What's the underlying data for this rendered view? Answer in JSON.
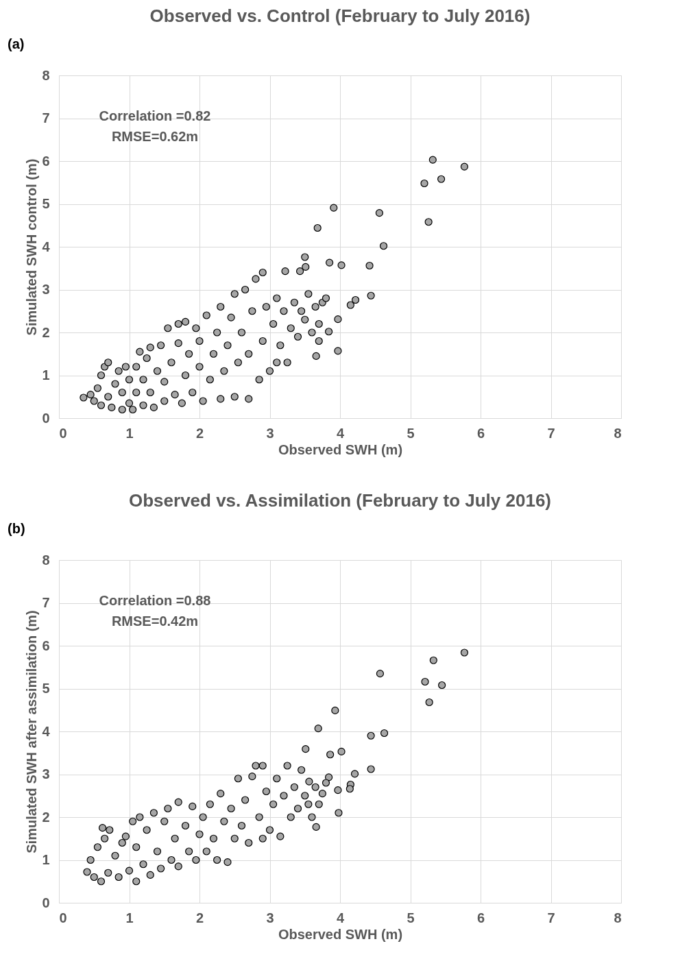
{
  "chart_data": [
    {
      "type": "scatter",
      "title": "Observed vs. Control (February to July 2016)",
      "xlabel": "Observed SWH (m)",
      "ylabel": "Simulated SWH control (m)",
      "annotations": [
        "(a)",
        "Correlation =0.82",
        "RMSE=0.62m"
      ],
      "xlim": [
        0,
        8
      ],
      "ylim": [
        0,
        8
      ],
      "xticks": [
        0,
        1,
        2,
        3,
        4,
        5,
        6,
        7,
        8
      ],
      "yticks": [
        0,
        1,
        2,
        3,
        4,
        5,
        6,
        7,
        8
      ],
      "grid": true,
      "marker": "circle",
      "series": [
        {
          "color": "#a6a6a6",
          "x": [
            5.32,
            5.77,
            5.2,
            5.44,
            4.56,
            5.26,
            3.91,
            3.68,
            4.62,
            3.85,
            4.02,
            4.42,
            3.5,
            3.51,
            4.44,
            4.22,
            4.15,
            3.97,
            3.97,
            3.84,
            3.66,
            3.7,
            3.43,
            3.22,
            0.35,
            0.45,
            0.5,
            0.55,
            0.6,
            0.6,
            0.65,
            0.7,
            0.7,
            0.75,
            0.8,
            0.85,
            0.9,
            0.9,
            0.95,
            1.0,
            1.0,
            1.05,
            1.1,
            1.1,
            1.15,
            1.2,
            1.2,
            1.25,
            1.3,
            1.3,
            1.35,
            1.4,
            1.45,
            1.5,
            1.5,
            1.55,
            1.6,
            1.65,
            1.7,
            1.7,
            1.75,
            1.8,
            1.8,
            1.85,
            1.9,
            1.95,
            2.0,
            2.0,
            2.05,
            2.1,
            2.15,
            2.2,
            2.25,
            2.3,
            2.3,
            2.35,
            2.4,
            2.45,
            2.5,
            2.5,
            2.55,
            2.6,
            2.65,
            2.7,
            2.7,
            2.75,
            2.8,
            2.85,
            2.9,
            2.9,
            2.95,
            3.0,
            3.05,
            3.1,
            3.1,
            3.15,
            3.2,
            3.25,
            3.3,
            3.35,
            3.4,
            3.45,
            3.5,
            3.55,
            3.6,
            3.65,
            3.7,
            3.75,
            3.8
          ],
          "values": [
            6.03,
            5.87,
            5.48,
            5.58,
            4.79,
            4.58,
            4.91,
            4.44,
            4.02,
            3.63,
            3.57,
            3.56,
            3.76,
            3.53,
            2.86,
            2.76,
            2.64,
            2.31,
            1.57,
            2.02,
            1.45,
            1.8,
            3.43,
            3.43,
            0.48,
            0.55,
            0.4,
            0.7,
            0.3,
            1.0,
            1.2,
            1.3,
            0.5,
            0.25,
            0.8,
            1.1,
            0.2,
            0.6,
            1.2,
            0.35,
            0.9,
            0.2,
            0.6,
            1.2,
            1.55,
            0.3,
            0.9,
            1.4,
            1.65,
            0.6,
            0.25,
            1.1,
            1.7,
            0.4,
            0.85,
            2.1,
            1.3,
            0.55,
            1.75,
            2.2,
            0.35,
            2.25,
            1.0,
            1.5,
            0.6,
            2.1,
            1.2,
            1.8,
            0.4,
            2.4,
            0.9,
            1.5,
            2.0,
            0.45,
            2.6,
            1.1,
            1.7,
            2.35,
            0.5,
            2.9,
            1.3,
            2.0,
            3.0,
            0.45,
            1.5,
            2.5,
            3.25,
            0.9,
            3.4,
            1.8,
            2.6,
            1.1,
            2.2,
            2.8,
            1.3,
            1.7,
            2.5,
            1.3,
            2.1,
            2.7,
            1.9,
            2.5,
            2.3,
            2.9,
            2.0,
            2.6,
            2.2,
            2.7,
            2.8
          ]
        }
      ]
    },
    {
      "type": "scatter",
      "title": "Observed vs. Assimilation (February to July 2016)",
      "xlabel": "Observed SWH (m)",
      "ylabel": "Simulated SWH  after assimilation (m)",
      "annotations": [
        "(b)",
        "Correlation =0.88",
        "RMSE=0.42m"
      ],
      "xlim": [
        0,
        8
      ],
      "ylim": [
        0,
        8
      ],
      "xticks": [
        0,
        1,
        2,
        3,
        4,
        5,
        6,
        7,
        8
      ],
      "yticks": [
        0,
        1,
        2,
        3,
        4,
        5,
        6,
        7,
        8
      ],
      "grid": true,
      "marker": "circle",
      "series": [
        {
          "color": "#a6a6a6",
          "x": [
            5.77,
            5.33,
            4.57,
            5.21,
            5.45,
            5.27,
            3.93,
            3.69,
            4.63,
            4.44,
            4.02,
            3.86,
            3.51,
            4.44,
            4.21,
            4.15,
            4.14,
            3.97,
            3.98,
            3.66,
            3.84,
            3.56,
            0.4,
            0.45,
            0.5,
            0.55,
            0.6,
            0.62,
            0.65,
            0.7,
            0.72,
            0.8,
            0.85,
            0.9,
            0.95,
            1.0,
            1.05,
            1.1,
            1.1,
            1.15,
            1.2,
            1.25,
            1.3,
            1.35,
            1.4,
            1.45,
            1.5,
            1.55,
            1.6,
            1.65,
            1.7,
            1.7,
            1.8,
            1.85,
            1.9,
            1.95,
            2.0,
            2.05,
            2.1,
            2.15,
            2.2,
            2.25,
            2.3,
            2.35,
            2.4,
            2.45,
            2.5,
            2.55,
            2.6,
            2.65,
            2.7,
            2.75,
            2.8,
            2.85,
            2.9,
            2.9,
            2.95,
            3.0,
            3.05,
            3.1,
            3.15,
            3.2,
            3.25,
            3.3,
            3.35,
            3.4,
            3.45,
            3.5,
            3.55,
            3.6,
            3.65,
            3.7,
            3.75,
            3.8
          ],
          "values": [
            5.84,
            5.66,
            5.35,
            5.16,
            5.08,
            4.68,
            4.49,
            4.07,
            3.96,
            3.9,
            3.53,
            3.46,
            3.59,
            3.12,
            3.01,
            2.76,
            2.66,
            2.63,
            2.1,
            1.77,
            2.93,
            2.83,
            0.72,
            1.0,
            0.6,
            1.3,
            0.5,
            1.75,
            1.5,
            0.7,
            1.7,
            1.1,
            0.6,
            1.4,
            1.55,
            0.75,
            1.9,
            0.5,
            1.3,
            2.0,
            0.9,
            1.7,
            0.65,
            2.1,
            1.2,
            0.8,
            1.9,
            2.2,
            1.0,
            1.5,
            2.35,
            0.85,
            1.8,
            1.2,
            2.25,
            1.0,
            1.6,
            2.0,
            1.2,
            2.3,
            1.5,
            1.0,
            2.55,
            1.9,
            0.95,
            2.2,
            1.5,
            2.9,
            1.8,
            2.4,
            1.4,
            2.95,
            3.2,
            2.0,
            3.2,
            1.5,
            2.6,
            1.7,
            2.3,
            2.9,
            1.55,
            2.5,
            3.2,
            2.0,
            2.7,
            2.2,
            3.1,
            2.5,
            2.3,
            2.0,
            2.7,
            2.3,
            2.55,
            2.8
          ]
        }
      ]
    }
  ]
}
